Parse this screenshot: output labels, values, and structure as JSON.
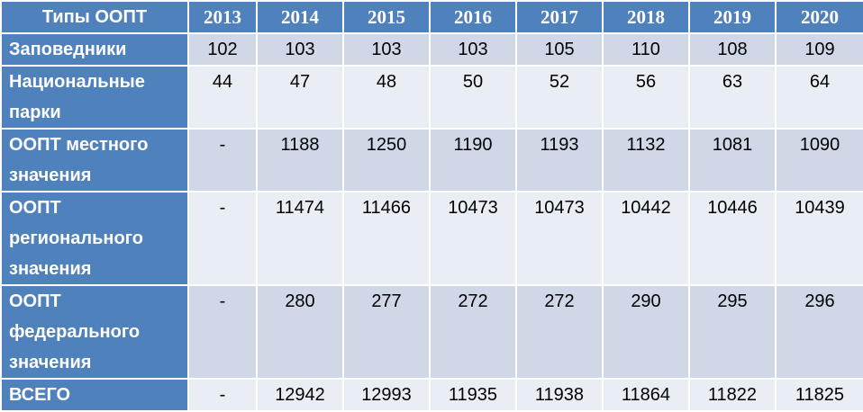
{
  "table": {
    "header": [
      "Типы ООПТ",
      "2013",
      "2014",
      "2015",
      "2016",
      "2017",
      "2018",
      "2019",
      "2020"
    ],
    "rows": [
      [
        "Заповедники",
        102,
        103,
        103,
        103,
        105,
        110,
        108,
        109
      ],
      [
        "Национальные парки",
        44,
        47,
        48,
        50,
        52,
        56,
        63,
        64
      ],
      [
        "ООПТ местного значения",
        "-",
        1188,
        1250,
        1190,
        1193,
        1132,
        1081,
        1090
      ],
      [
        "ООПТ регионального значения",
        "-",
        11474,
        11466,
        10473,
        10473,
        10442,
        10446,
        10439
      ],
      [
        "ООПТ федерального значения",
        "-",
        280,
        277,
        272,
        272,
        290,
        295,
        296
      ],
      [
        "ВСЕГО",
        "-",
        12942,
        12993,
        11935,
        11938,
        11864,
        11822,
        11825
      ]
    ]
  }
}
